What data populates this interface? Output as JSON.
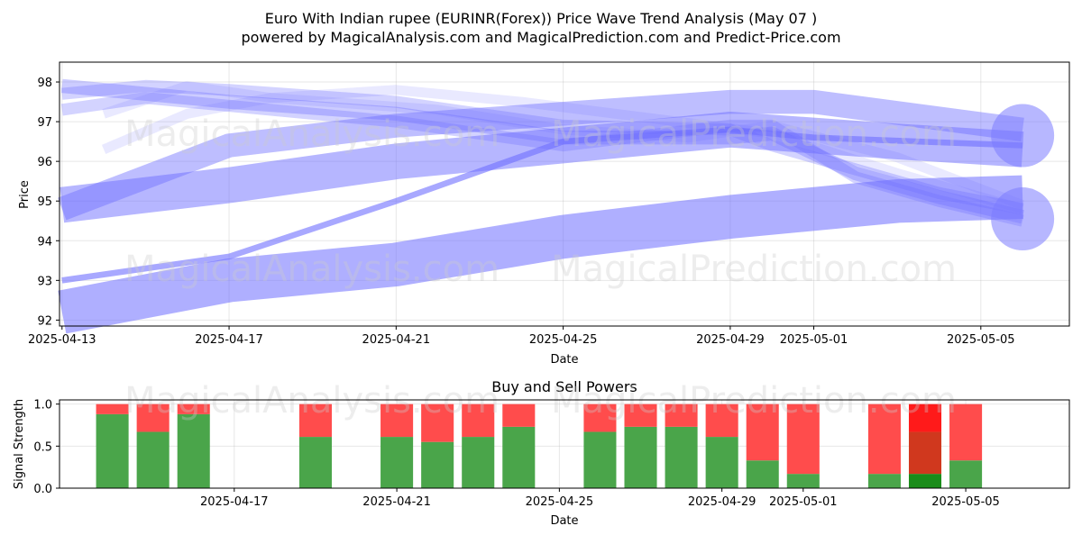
{
  "figure": {
    "title_line1": "Euro With Indian rupee (EURINR(Forex)) Price Wave Trend Analysis (May 07 )",
    "title_line2": "powered by MagicalAnalysis.com and MagicalPrediction.com and Predict-Price.com",
    "watermarks": [
      "MagicalAnalysis.com",
      "MagicalPrediction.com"
    ]
  },
  "chart_data": [
    {
      "type": "line",
      "title": "",
      "xlabel": "Date",
      "ylabel": "Price",
      "xlim": [
        "2025-04-13",
        "2025-05-07"
      ],
      "ylim": [
        91.85,
        98.5
      ],
      "xticks": [
        "2025-04-13",
        "2025-04-17",
        "2025-04-21",
        "2025-04-25",
        "2025-04-29",
        "2025-05-01",
        "2025-05-05"
      ],
      "yticks": [
        92,
        93,
        94,
        95,
        96,
        97,
        98
      ],
      "grid": true,
      "series": [
        {
          "kind": "band",
          "x": [
            "2025-04-13",
            "2025-04-17",
            "2025-04-21",
            "2025-04-25",
            "2025-04-29",
            "2025-05-03",
            "2025-05-06"
          ],
          "y": [
            92.2,
            93.0,
            93.4,
            94.1,
            94.6,
            95.0,
            95.1
          ],
          "width": 1.1
        },
        {
          "kind": "band",
          "x": [
            "2025-04-13",
            "2025-04-17",
            "2025-04-21",
            "2025-04-25",
            "2025-04-29",
            "2025-05-03",
            "2025-05-06"
          ],
          "y": [
            94.9,
            95.4,
            96.0,
            96.4,
            96.8,
            96.5,
            96.3
          ],
          "width": 0.9
        },
        {
          "kind": "band",
          "x": [
            "2025-04-13",
            "2025-04-17",
            "2025-04-21",
            "2025-04-25",
            "2025-04-29",
            "2025-05-01",
            "2025-05-06"
          ],
          "y": [
            94.8,
            96.4,
            96.9,
            97.2,
            97.5,
            97.5,
            96.8
          ],
          "width": 0.6
        },
        {
          "kind": "band",
          "x": [
            "2025-04-13",
            "2025-04-15",
            "2025-04-17",
            "2025-04-21",
            "2025-04-25",
            "2025-04-29",
            "2025-04-30",
            "2025-05-02",
            "2025-05-04",
            "2025-05-06"
          ],
          "y": [
            97.9,
            97.7,
            97.5,
            97.2,
            96.6,
            96.6,
            96.7,
            95.7,
            95.1,
            94.6
          ],
          "width": 0.35
        },
        {
          "kind": "band",
          "x": [
            "2025-04-13",
            "2025-04-15",
            "2025-04-17",
            "2025-04-21",
            "2025-04-25",
            "2025-04-29",
            "2025-04-30",
            "2025-05-02",
            "2025-05-04",
            "2025-05-06"
          ],
          "y": [
            97.7,
            97.9,
            97.8,
            97.5,
            96.9,
            96.8,
            96.4,
            95.8,
            95.2,
            94.8
          ],
          "width": 0.3
        },
        {
          "kind": "band",
          "x": [
            "2025-04-13",
            "2025-04-15",
            "2025-04-17",
            "2025-04-21",
            "2025-04-25",
            "2025-04-29",
            "2025-04-30",
            "2025-05-02",
            "2025-05-04",
            "2025-05-06"
          ],
          "y": [
            97.3,
            97.6,
            97.4,
            97.0,
            96.4,
            96.9,
            96.9,
            95.6,
            95.0,
            94.5
          ],
          "width": 0.3
        },
        {
          "kind": "band",
          "x": [
            "2025-04-13",
            "2025-04-17",
            "2025-04-21",
            "2025-04-25",
            "2025-04-29",
            "2025-05-01",
            "2025-05-06"
          ],
          "y": [
            93.0,
            93.6,
            95.0,
            96.5,
            96.8,
            96.6,
            96.4
          ],
          "width": 0.15
        },
        {
          "kind": "band",
          "x": [
            "2025-04-14",
            "2025-04-16",
            "2025-04-18",
            "2025-04-21",
            "2025-04-24",
            "2025-04-27",
            "2025-04-30",
            "2025-05-03",
            "2025-05-06"
          ],
          "y": [
            96.3,
            97.2,
            97.6,
            97.8,
            97.5,
            97.1,
            96.7,
            95.7,
            94.8
          ],
          "width": 0.25
        },
        {
          "kind": "band",
          "x": [
            "2025-04-14",
            "2025-04-16",
            "2025-04-18",
            "2025-04-22",
            "2025-04-25",
            "2025-04-28",
            "2025-04-30",
            "2025-05-03",
            "2025-05-06"
          ],
          "y": [
            97.2,
            97.9,
            97.6,
            97.3,
            96.8,
            96.6,
            96.9,
            96.1,
            94.9
          ],
          "width": 0.25
        }
      ],
      "end_markers": [
        {
          "x": "2025-05-06",
          "y": 96.65
        },
        {
          "x": "2025-05-06",
          "y": 94.55
        }
      ]
    },
    {
      "type": "bar",
      "title": "Buy and Sell Powers",
      "xlabel": "Date",
      "ylabel": "Signal Strength",
      "xlim": [
        "2025-04-13",
        "2025-05-07"
      ],
      "ylim": [
        0,
        1.05
      ],
      "xticks": [
        "2025-04-17",
        "2025-04-21",
        "2025-04-25",
        "2025-04-29",
        "2025-05-01",
        "2025-05-05"
      ],
      "yticks": [
        0.0,
        0.5,
        1.0
      ],
      "grid": true,
      "colors": {
        "buy": "#4aa54a",
        "sell": "#ff4c4c",
        "buy_highlight": "#1a8c1a",
        "sell_highlight": "#d0381e",
        "sell_top": "#ff1a1a"
      },
      "bars": [
        {
          "date": "2025-04-14",
          "buy": 0.88,
          "sell": 0.12
        },
        {
          "date": "2025-04-15",
          "buy": 0.67,
          "sell": 0.33
        },
        {
          "date": "2025-04-16",
          "buy": 0.88,
          "sell": 0.12
        },
        {
          "date": "2025-04-19",
          "buy": 0.61,
          "sell": 0.39
        },
        {
          "date": "2025-04-21",
          "buy": 0.61,
          "sell": 0.39
        },
        {
          "date": "2025-04-22",
          "buy": 0.55,
          "sell": 0.45
        },
        {
          "date": "2025-04-23",
          "buy": 0.61,
          "sell": 0.39
        },
        {
          "date": "2025-04-24",
          "buy": 0.73,
          "sell": 0.27
        },
        {
          "date": "2025-04-26",
          "buy": 0.67,
          "sell": 0.33
        },
        {
          "date": "2025-04-27",
          "buy": 0.73,
          "sell": 0.27
        },
        {
          "date": "2025-04-28",
          "buy": 0.73,
          "sell": 0.27
        },
        {
          "date": "2025-04-29",
          "buy": 0.61,
          "sell": 0.39
        },
        {
          "date": "2025-04-30",
          "buy": 0.33,
          "sell": 0.67
        },
        {
          "date": "2025-05-01",
          "buy": 0.17,
          "sell": 0.83
        },
        {
          "date": "2025-05-03",
          "buy": 0.17,
          "sell": 0.83
        },
        {
          "date": "2025-05-04",
          "buy": 0.17,
          "sell": 0.83,
          "highlight": true,
          "sell_mid": 0.5
        },
        {
          "date": "2025-05-05",
          "buy": 0.33,
          "sell": 0.67
        }
      ]
    }
  ]
}
